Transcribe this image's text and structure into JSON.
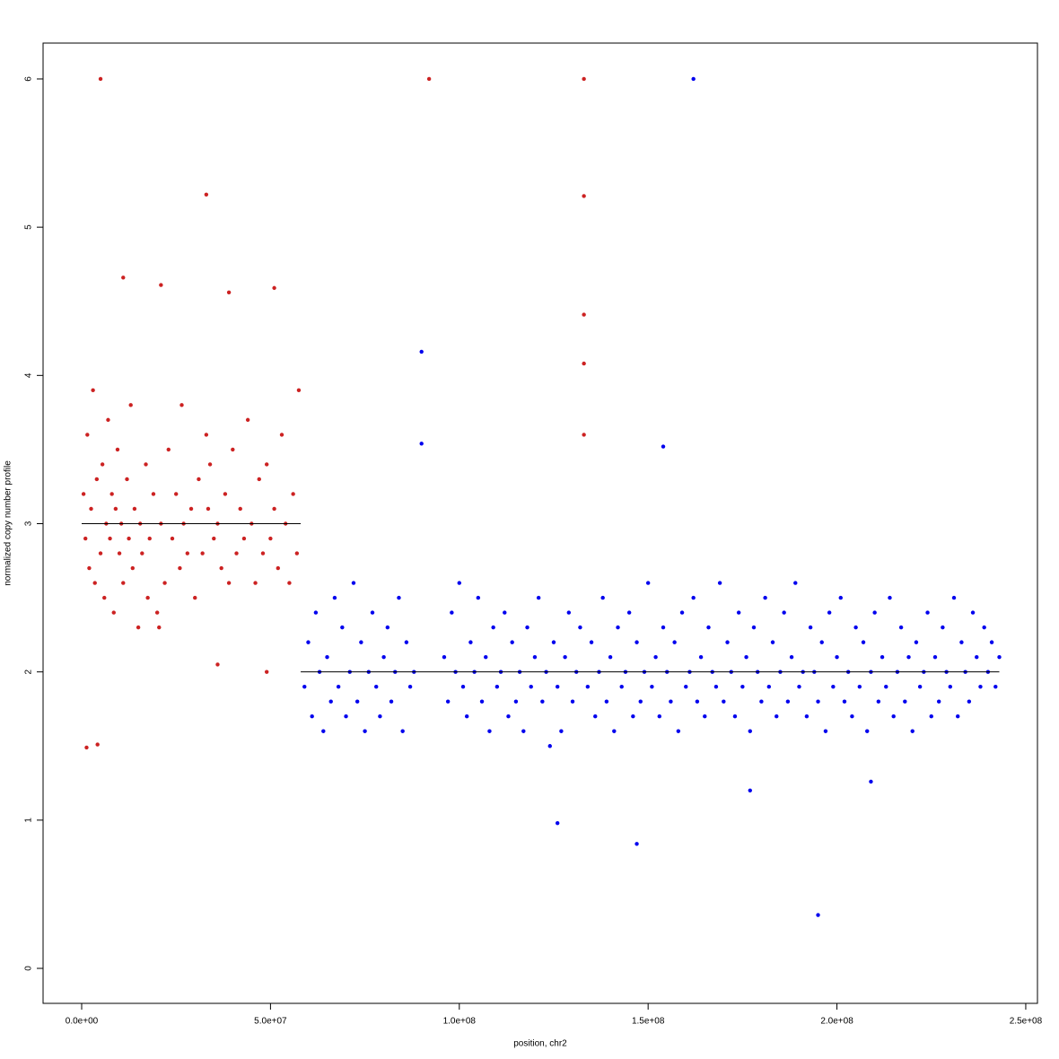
{
  "chart_data": {
    "type": "scatter",
    "x_label": "position, chr2",
    "y_label": "normalized copy number profile",
    "xlim": [
      -10219000,
      253100000
    ],
    "ylim": [
      -0.236,
      6.242
    ],
    "xticks": [
      {
        "value": 0,
        "label": "0.0e+00"
      },
      {
        "value": 50000000,
        "label": "5.0e+07"
      },
      {
        "value": 100000000,
        "label": "1.0e+08"
      },
      {
        "value": 150000000,
        "label": "1.5e+08"
      },
      {
        "value": 200000000,
        "label": "2.0e+08"
      },
      {
        "value": 250000000,
        "label": "2.5e+08"
      }
    ],
    "yticks": [
      0,
      1,
      2,
      3,
      4,
      5,
      6
    ],
    "series": [
      {
        "color": "#cc2222",
        "x": [
          500000.0,
          1000000.0,
          1500000.0,
          2000000.0,
          2500000.0,
          3000000.0,
          3500000.0,
          4000000.0,
          5000000.0,
          5500000.0,
          6000000.0,
          6500000.0,
          7000000.0,
          7500000.0,
          8000000.0,
          8500000.0,
          9000000.0,
          9500000.0,
          10000000.0,
          10500000.0,
          11000000.0,
          12000000.0,
          12500000.0,
          13000000.0,
          13500000.0,
          14000000.0,
          15000000.0,
          15500000.0,
          16000000.0,
          17000000.0,
          17500000.0,
          18000000.0,
          19000000.0,
          20000000.0,
          20500000.0,
          21000000.0,
          22000000.0,
          23000000.0,
          24000000.0,
          25000000.0,
          26000000.0,
          26500000.0,
          27000000.0,
          28000000.0,
          29000000.0,
          30000000.0,
          31000000.0,
          32000000.0,
          33000000.0,
          33500000.0,
          34000000.0,
          35000000.0,
          36000000.0,
          37000000.0,
          38000000.0,
          39000000.0,
          40000000.0,
          41000000.0,
          42000000.0,
          43000000.0,
          44000000.0,
          45000000.0,
          46000000.0,
          47000000.0,
          48000000.0,
          49000000.0,
          50000000.0,
          51000000.0,
          52000000.0,
          53000000.0,
          54000000.0,
          55000000.0,
          56000000.0,
          57000000.0,
          57500000.0,
          5000000.0,
          92000000.0,
          133000000.0,
          33000000.0,
          133000000.0,
          133000000.0,
          133000000.0,
          133000000.0,
          1300000.0,
          4200000.0,
          36000000.0,
          49000000.0,
          11000000.0,
          21000000.0,
          51000000.0,
          39000000.0
        ],
        "values": [
          3.2,
          2.9,
          3.6,
          2.7,
          3.1,
          3.9,
          2.6,
          3.3,
          2.8,
          3.4,
          2.5,
          3.0,
          3.7,
          2.9,
          3.2,
          2.4,
          3.1,
          3.5,
          2.8,
          3.0,
          2.6,
          3.3,
          2.9,
          3.8,
          2.7,
          3.1,
          2.3,
          3.0,
          2.8,
          3.4,
          2.5,
          2.9,
          3.2,
          2.4,
          2.3,
          3.0,
          2.6,
          3.5,
          2.9,
          3.2,
          2.7,
          3.8,
          3.0,
          2.8,
          3.1,
          2.5,
          3.3,
          2.8,
          3.6,
          3.1,
          3.4,
          2.9,
          3.0,
          2.7,
          3.2,
          2.6,
          3.5,
          2.8,
          3.1,
          2.9,
          3.7,
          3.0,
          2.6,
          3.3,
          2.8,
          3.4,
          2.9,
          3.1,
          2.7,
          3.6,
          3.0,
          2.6,
          3.2,
          2.8,
          3.9,
          6,
          6,
          6,
          5.22,
          5.21,
          4.41,
          4.08,
          3.6,
          1.49,
          1.51,
          2.05,
          2.0,
          4.66,
          4.61,
          4.59,
          4.56
        ]
      },
      {
        "color": "#0000ee",
        "x": [
          59000000.0,
          60000000.0,
          61000000.0,
          62000000.0,
          63000000.0,
          64000000.0,
          65000000.0,
          66000000.0,
          67000000.0,
          68000000.0,
          69000000.0,
          70000000.0,
          71000000.0,
          72000000.0,
          73000000.0,
          74000000.0,
          75000000.0,
          76000000.0,
          77000000.0,
          78000000.0,
          79000000.0,
          80000000.0,
          81000000.0,
          82000000.0,
          83000000.0,
          84000000.0,
          85000000.0,
          86000000.0,
          87000000.0,
          88000000.0,
          96000000.0,
          97000000.0,
          98000000.0,
          99000000.0,
          100000000.0,
          101000000.0,
          102000000.0,
          103000000.0,
          104000000.0,
          105000000.0,
          106000000.0,
          107000000.0,
          108000000.0,
          109000000.0,
          110000000.0,
          111000000.0,
          112000000.0,
          113000000.0,
          114000000.0,
          115000000.0,
          116000000.0,
          117000000.0,
          118000000.0,
          119000000.0,
          120000000.0,
          121000000.0,
          122000000.0,
          123000000.0,
          124000000.0,
          125000000.0,
          126000000.0,
          127000000.0,
          128000000.0,
          129000000.0,
          130000000.0,
          131000000.0,
          132000000.0,
          134000000.0,
          135000000.0,
          136000000.0,
          137000000.0,
          138000000.0,
          139000000.0,
          140000000.0,
          141000000.0,
          142000000.0,
          143000000.0,
          144000000.0,
          145000000.0,
          146000000.0,
          147000000.0,
          148000000.0,
          149000000.0,
          150000000.0,
          151000000.0,
          152000000.0,
          153000000.0,
          154000000.0,
          155000000.0,
          156000000.0,
          157000000.0,
          158000000.0,
          159000000.0,
          160000000.0,
          161000000.0,
          162000000.0,
          163000000.0,
          164000000.0,
          165000000.0,
          166000000.0,
          167000000.0,
          168000000.0,
          169000000.0,
          170000000.0,
          171000000.0,
          172000000.0,
          173000000.0,
          174000000.0,
          175000000.0,
          176000000.0,
          177000000.0,
          178000000.0,
          179000000.0,
          180000000.0,
          181000000.0,
          182000000.0,
          183000000.0,
          184000000.0,
          185000000.0,
          186000000.0,
          187000000.0,
          188000000.0,
          189000000.0,
          190000000.0,
          191000000.0,
          192000000.0,
          193000000.0,
          194000000.0,
          195000000.0,
          196000000.0,
          197000000.0,
          198000000.0,
          199000000.0,
          200000000.0,
          201000000.0,
          202000000.0,
          203000000.0,
          204000000.0,
          205000000.0,
          206000000.0,
          207000000.0,
          208000000.0,
          209000000.0,
          210000000.0,
          211000000.0,
          212000000.0,
          213000000.0,
          214000000.0,
          215000000.0,
          216000000.0,
          217000000.0,
          218000000.0,
          219000000.0,
          220000000.0,
          221000000.0,
          222000000.0,
          223000000.0,
          224000000.0,
          225000000.0,
          226000000.0,
          227000000.0,
          228000000.0,
          229000000.0,
          230000000.0,
          231000000.0,
          232000000.0,
          233000000.0,
          234000000.0,
          235000000.0,
          236000000.0,
          237000000.0,
          238000000.0,
          239000000.0,
          240000000.0,
          241000000.0,
          242000000.0,
          243000000.0,
          162000000.0,
          90000000.0,
          90000000.0,
          154000000.0,
          126000000.0,
          147000000.0,
          195000000.0,
          177000000.0,
          209000000.0
        ],
        "values": [
          1.9,
          2.2,
          1.7,
          2.4,
          2.0,
          1.6,
          2.1,
          1.8,
          2.5,
          1.9,
          2.3,
          1.7,
          2.0,
          2.6,
          1.8,
          2.2,
          1.6,
          2.0,
          2.4,
          1.9,
          1.7,
          2.1,
          2.3,
          1.8,
          2.0,
          2.5,
          1.6,
          2.2,
          1.9,
          2.0,
          2.1,
          1.8,
          2.4,
          2.0,
          2.6,
          1.9,
          1.7,
          2.2,
          2.0,
          2.5,
          1.8,
          2.1,
          1.6,
          2.3,
          1.9,
          2.0,
          2.4,
          1.7,
          2.2,
          1.8,
          2.0,
          1.6,
          2.3,
          1.9,
          2.1,
          2.5,
          1.8,
          2.0,
          1.5,
          2.2,
          1.9,
          1.6,
          2.1,
          2.4,
          1.8,
          2.0,
          2.3,
          1.9,
          2.2,
          1.7,
          2.0,
          2.5,
          1.8,
          2.1,
          1.6,
          2.3,
          1.9,
          2.0,
          2.4,
          1.7,
          2.2,
          1.8,
          2.0,
          2.6,
          1.9,
          2.1,
          1.7,
          2.3,
          2.0,
          1.8,
          2.2,
          1.6,
          2.4,
          1.9,
          2.0,
          2.5,
          1.8,
          2.1,
          1.7,
          2.3,
          2.0,
          1.9,
          2.6,
          1.8,
          2.2,
          2.0,
          1.7,
          2.4,
          1.9,
          2.1,
          1.6,
          2.3,
          2.0,
          1.8,
          2.5,
          1.9,
          2.2,
          1.7,
          2.0,
          2.4,
          1.8,
          2.1,
          2.6,
          1.9,
          2.0,
          1.7,
          2.3,
          2.0,
          1.8,
          2.2,
          1.6,
          2.4,
          1.9,
          2.1,
          2.5,
          1.8,
          2.0,
          1.7,
          2.3,
          1.9,
          2.2,
          1.6,
          2.0,
          2.4,
          1.8,
          2.1,
          1.9,
          2.5,
          1.7,
          2.0,
          2.3,
          1.8,
          2.1,
          1.6,
          2.2,
          1.9,
          2.0,
          2.4,
          1.7,
          2.1,
          1.8,
          2.3,
          2.0,
          1.9,
          2.5,
          1.7,
          2.2,
          2.0,
          1.8,
          2.4,
          2.1,
          1.9,
          2.3,
          2.0,
          2.2,
          1.9,
          2.1,
          6,
          4.16,
          3.54,
          3.52,
          0.98,
          0.84,
          0.36,
          1.2,
          1.26
        ]
      }
    ],
    "segments": [
      {
        "color": "#000000",
        "x": [
          0,
          58000000.0
        ],
        "values": [
          3,
          3
        ]
      },
      {
        "color": "#000000",
        "x": [
          58000000.0,
          243000000.0
        ],
        "values": [
          2,
          2
        ]
      }
    ]
  }
}
